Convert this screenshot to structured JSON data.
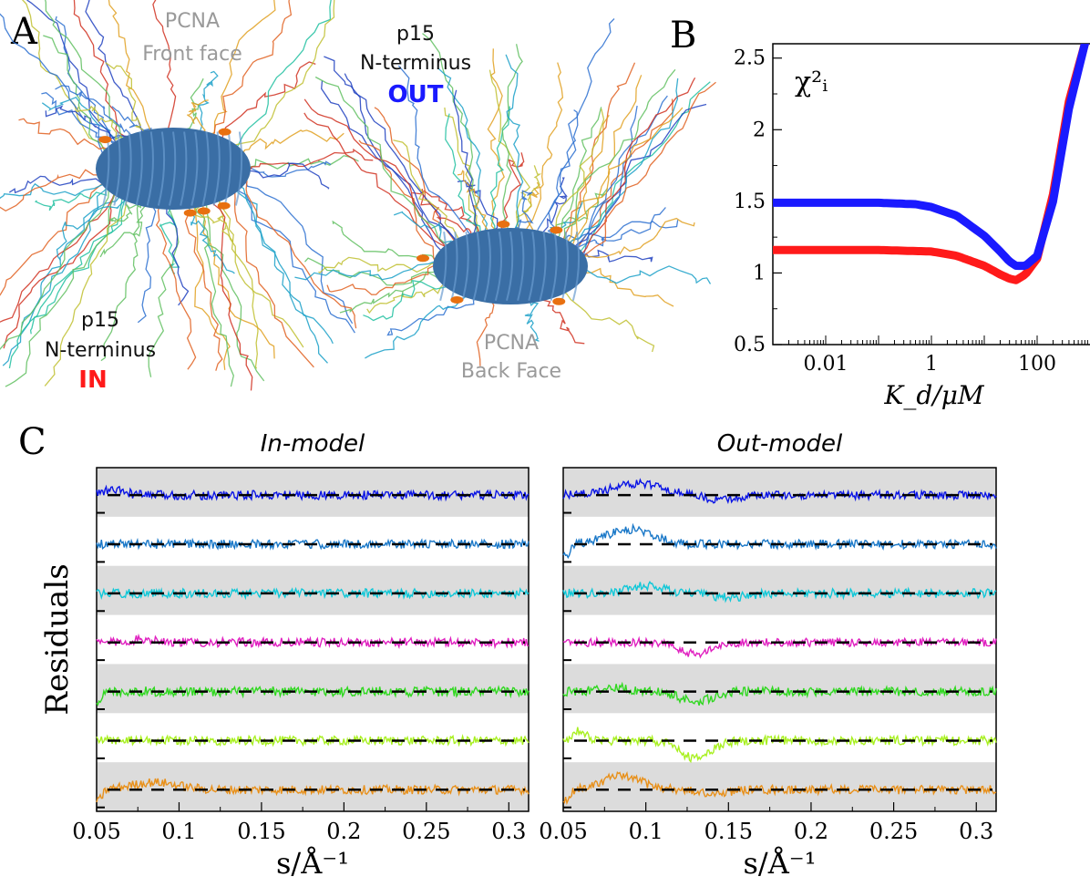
{
  "panel_letters": {
    "a": "A",
    "b": "B",
    "c": "C"
  },
  "panel_a": {
    "left_top_label": [
      "PCNA",
      "Front face"
    ],
    "left_bottom_label": [
      "p15",
      "N-terminus"
    ],
    "left_tag": "IN",
    "right_top_label": [
      "p15",
      "N-terminus"
    ],
    "right_tag": "OUT",
    "right_bottom_label": [
      "PCNA",
      "Back Face"
    ]
  },
  "colors": {
    "in": "#ff1a1a",
    "out": "#1a1aff",
    "protein": "#3a6ea5",
    "muted_label": "#9a9a9a",
    "band": "#dcdcdc"
  },
  "chart_data": [
    {
      "type": "line",
      "panel": "B",
      "ylabel": "χ²ᵢ",
      "xlabel": "K_d/μM",
      "xscale": "log",
      "xlim": [
        0.001,
        1000
      ],
      "ylim": [
        0.5,
        2.6
      ],
      "xtick_labels": [
        "0.01",
        "1",
        "100"
      ],
      "xticks": [
        0.01,
        1,
        100
      ],
      "ytick_labels": [
        "0.5",
        "1",
        "1.5",
        "2",
        "2.5"
      ],
      "yticks": [
        0.5,
        1,
        1.5,
        2,
        2.5
      ],
      "series": [
        {
          "color": "#ff1a1a",
          "x": [
            0.001,
            0.01,
            0.1,
            1,
            3,
            10,
            20,
            30,
            40,
            60,
            100,
            200,
            400,
            800,
            1000
          ],
          "y": [
            1.16,
            1.16,
            1.16,
            1.15,
            1.12,
            1.05,
            0.99,
            0.96,
            0.95,
            0.99,
            1.1,
            1.55,
            2.2,
            2.6,
            2.7
          ]
        },
        {
          "color": "#1a1aff",
          "x": [
            0.001,
            0.01,
            0.1,
            0.5,
            1,
            3,
            10,
            20,
            30,
            40,
            60,
            100,
            200,
            400,
            800,
            1000
          ],
          "y": [
            1.49,
            1.49,
            1.49,
            1.48,
            1.46,
            1.4,
            1.26,
            1.15,
            1.08,
            1.05,
            1.05,
            1.12,
            1.5,
            2.15,
            2.6,
            2.7
          ]
        }
      ]
    },
    {
      "type": "line",
      "panel": "C-left",
      "title": "In-model",
      "ylabel": "Residuals",
      "xlabel": "s/Å⁻¹",
      "xlim": [
        0.05,
        0.312
      ],
      "xtick_labels": [
        "0.05",
        "0.1",
        "0.15",
        "0.2",
        "0.25",
        "0.3"
      ],
      "xticks": [
        0.05,
        0.1,
        0.15,
        0.2,
        0.25,
        0.3
      ],
      "series": [
        {
          "color": "#0a14e6",
          "noise": 0.55,
          "bumps": [
            [
              0.06,
              0.6,
              0.01
            ]
          ]
        },
        {
          "color": "#1a78c8",
          "noise": 0.55,
          "bumps": []
        },
        {
          "color": "#10c8d8",
          "noise": 0.55,
          "bumps": []
        },
        {
          "color": "#e020c0",
          "noise": 0.55,
          "bumps": [
            [
              0.08,
              0.4,
              0.012
            ]
          ]
        },
        {
          "color": "#30d820",
          "noise": 0.6,
          "bumps": [
            [
              0.05,
              -1.2,
              0.004
            ]
          ]
        },
        {
          "color": "#a8f020",
          "noise": 0.55,
          "bumps": []
        },
        {
          "color": "#e8901a",
          "noise": 0.55,
          "bumps": [
            [
              0.05,
              -1.6,
              0.004
            ],
            [
              0.085,
              0.9,
              0.02
            ]
          ]
        }
      ]
    },
    {
      "type": "line",
      "panel": "C-right",
      "title": "Out-model",
      "xlabel": "s/Å⁻¹",
      "xlim": [
        0.05,
        0.312
      ],
      "xtick_labels": [
        "0.05",
        "0.1",
        "0.15",
        "0.2",
        "0.25",
        "0.3"
      ],
      "xticks": [
        0.05,
        0.1,
        0.15,
        0.2,
        0.25,
        0.3
      ],
      "series": [
        {
          "color": "#0a14e6",
          "noise": 0.5,
          "bumps": [
            [
              0.095,
              1.4,
              0.022
            ],
            [
              0.145,
              -0.6,
              0.012
            ]
          ]
        },
        {
          "color": "#1a78c8",
          "noise": 0.55,
          "bumps": [
            [
              0.05,
              -1.6,
              0.005
            ],
            [
              0.09,
              1.8,
              0.02
            ]
          ]
        },
        {
          "color": "#10c8d8",
          "noise": 0.55,
          "bumps": [
            [
              0.1,
              0.9,
              0.015
            ],
            [
              0.15,
              -0.5,
              0.015
            ]
          ]
        },
        {
          "color": "#e020c0",
          "noise": 0.5,
          "bumps": [
            [
              0.13,
              -1.4,
              0.014
            ]
          ]
        },
        {
          "color": "#30d820",
          "noise": 0.55,
          "bumps": [
            [
              0.08,
              0.5,
              0.012
            ],
            [
              0.13,
              -1.2,
              0.014
            ]
          ]
        },
        {
          "color": "#a8f020",
          "noise": 0.55,
          "bumps": [
            [
              0.06,
              1.2,
              0.006
            ],
            [
              0.13,
              -2.2,
              0.013
            ]
          ]
        },
        {
          "color": "#e8901a",
          "noise": 0.55,
          "bumps": [
            [
              0.05,
              -1.6,
              0.005
            ],
            [
              0.085,
              1.6,
              0.018
            ],
            [
              0.14,
              -0.5,
              0.012
            ]
          ]
        }
      ]
    }
  ]
}
